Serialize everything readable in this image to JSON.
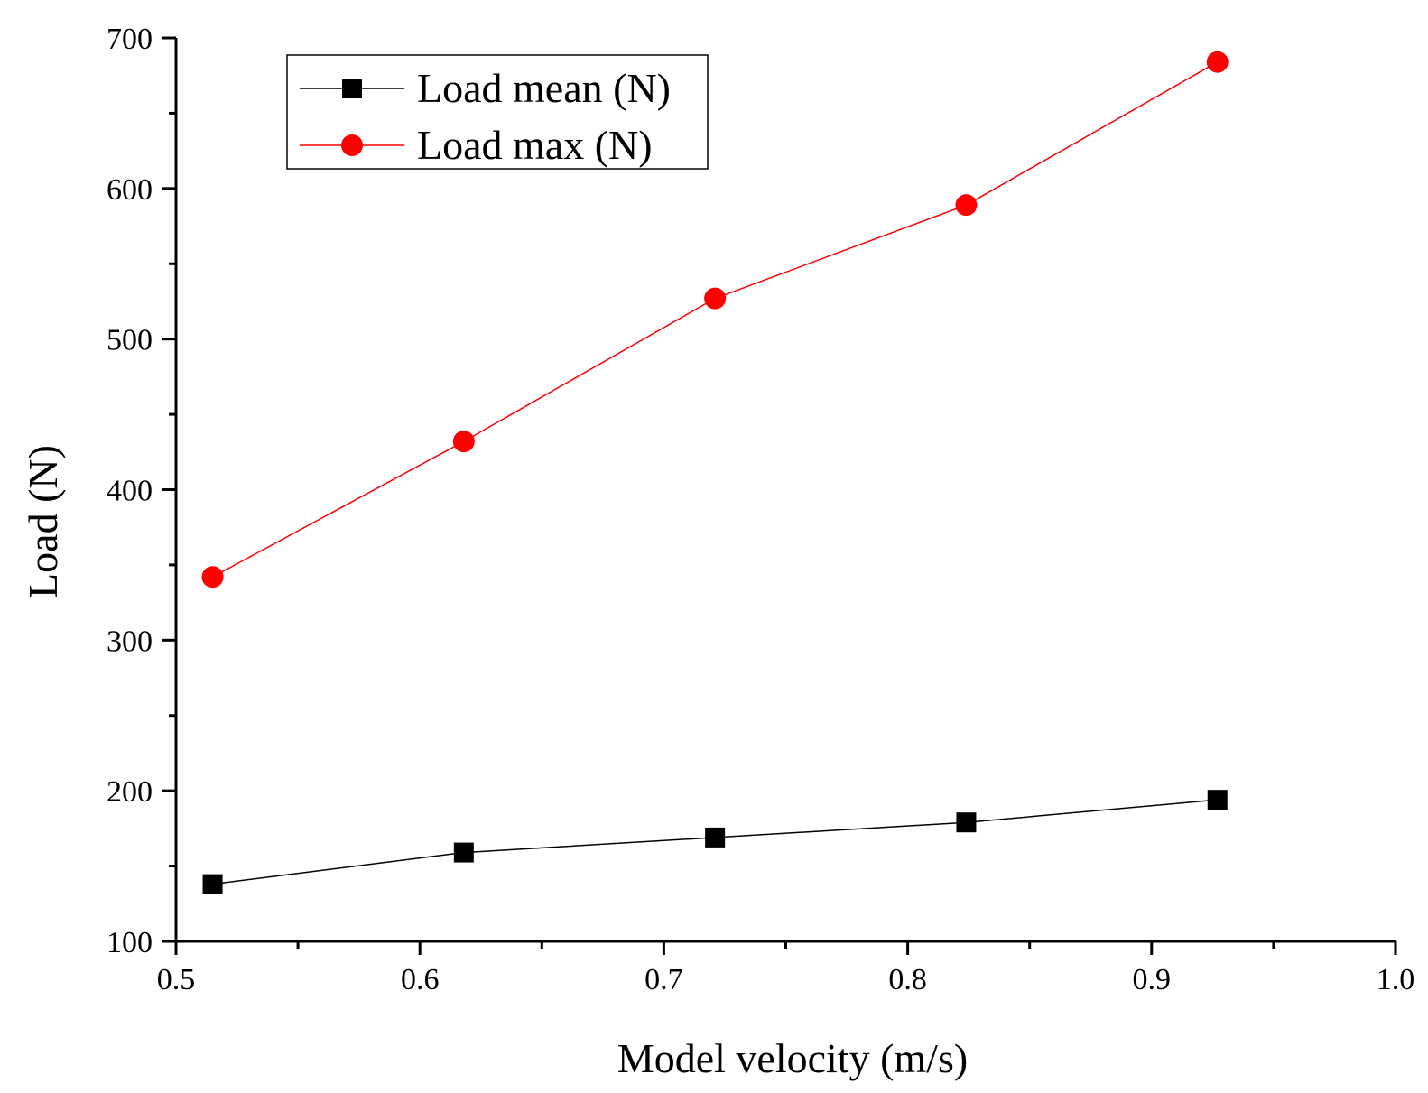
{
  "chart_data": {
    "type": "line",
    "title": "",
    "xlabel": "Model velocity (m/s)",
    "ylabel": "Load (N)",
    "xlim": [
      0.5,
      1.0
    ],
    "ylim": [
      100,
      700
    ],
    "x_ticks": [
      0.5,
      0.6,
      0.7,
      0.8,
      0.9,
      1.0
    ],
    "x_tick_labels": [
      "0.5",
      "0.6",
      "0.7",
      "0.8",
      "0.9",
      "1.0"
    ],
    "y_ticks": [
      100,
      200,
      300,
      400,
      500,
      600,
      700
    ],
    "y_tick_labels": [
      "100",
      "200",
      "300",
      "400",
      "500",
      "600",
      "700"
    ],
    "grid": false,
    "legend_position": "top-left",
    "x": [
      0.515,
      0.618,
      0.721,
      0.824,
      0.927
    ],
    "series": [
      {
        "name": "Load mean (N)",
        "color": "#000000",
        "marker": "square",
        "values": [
          138,
          159,
          169,
          179,
          194
        ]
      },
      {
        "name": "Load max (N)",
        "color": "#ff0000",
        "marker": "circle",
        "values": [
          342,
          432,
          527,
          589,
          684
        ]
      }
    ]
  }
}
